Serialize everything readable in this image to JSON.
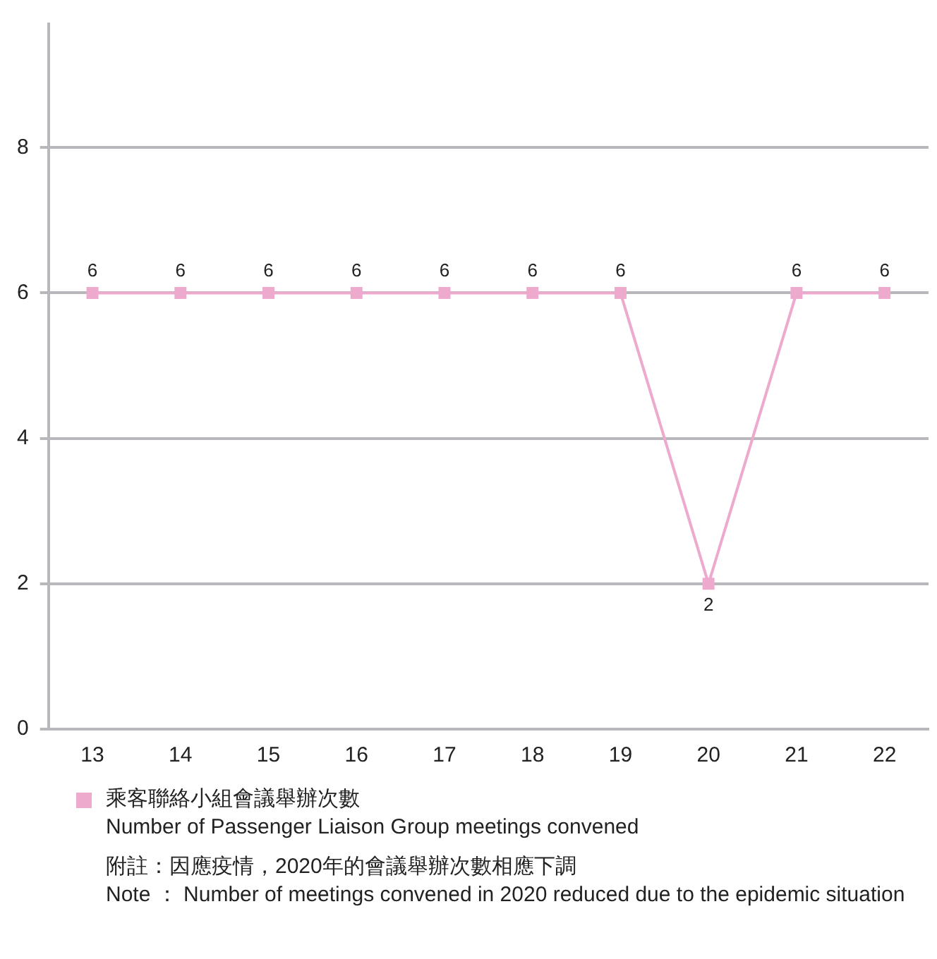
{
  "chart_data": {
    "type": "line",
    "categories": [
      "13",
      "14",
      "15",
      "16",
      "17",
      "18",
      "19",
      "20",
      "21",
      "22"
    ],
    "series": [
      {
        "name": "乘客聯絡小組會議舉辦次數\nNumber of Passenger Liaison Group meetings convened",
        "color": "#eeaacd",
        "values": [
          6,
          6,
          6,
          6,
          6,
          6,
          6,
          2,
          6,
          6
        ]
      }
    ],
    "ylim": [
      0,
      9.7
    ],
    "yticks": [
      0,
      2,
      4,
      6,
      8
    ],
    "grid": "y",
    "marker": "square",
    "data_labels": true,
    "legend": "bottom",
    "annotations": [
      "附註：因應疫情，2020年的會議舉辦次數相應下調",
      "Note  ：  Number of meetings convened in 2020 reduced due to the epidemic situation"
    ]
  }
}
